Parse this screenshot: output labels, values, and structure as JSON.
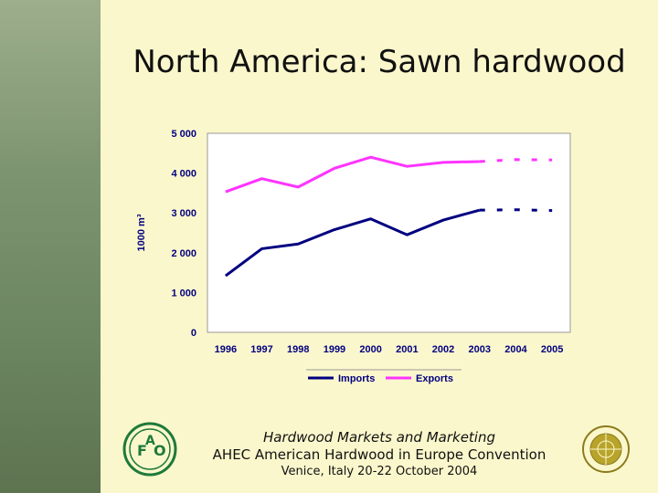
{
  "title": "North America: Sawn hardwood",
  "footer": {
    "line1": "Hardwood Markets and Marketing",
    "line2": "AHEC American Hardwood in Europe Convention",
    "line3": "Venice, Italy 20-22 October 2004"
  },
  "logos": {
    "left": "fao-logo",
    "right": "un-emblem",
    "fao_letters": [
      "F",
      "A",
      "O"
    ]
  },
  "chart_data": {
    "type": "line",
    "title": "",
    "xlabel": "",
    "ylabel": "1000 m³",
    "categories": [
      "1996",
      "1997",
      "1998",
      "1999",
      "2000",
      "2001",
      "2002",
      "2003",
      "2004",
      "2005"
    ],
    "ylim": [
      0,
      5000
    ],
    "yticks": [
      0,
      1000,
      2000,
      3000,
      4000,
      5000
    ],
    "ytick_labels": [
      "0",
      "1 000",
      "2 000",
      "3 000",
      "4 000",
      "5 000"
    ],
    "grid": false,
    "legend_position": "bottom",
    "series": [
      {
        "name": "Imports",
        "color": "#000080",
        "values": [
          1420,
          2100,
          2220,
          2580,
          2850,
          2450,
          2820,
          3070,
          3080,
          3060
        ],
        "projected_from_index": 7
      },
      {
        "name": "Exports",
        "color": "#FF33FF",
        "values": [
          3530,
          3860,
          3650,
          4120,
          4400,
          4170,
          4270,
          4290,
          4340,
          4330
        ],
        "projected_from_index": 7
      }
    ]
  }
}
